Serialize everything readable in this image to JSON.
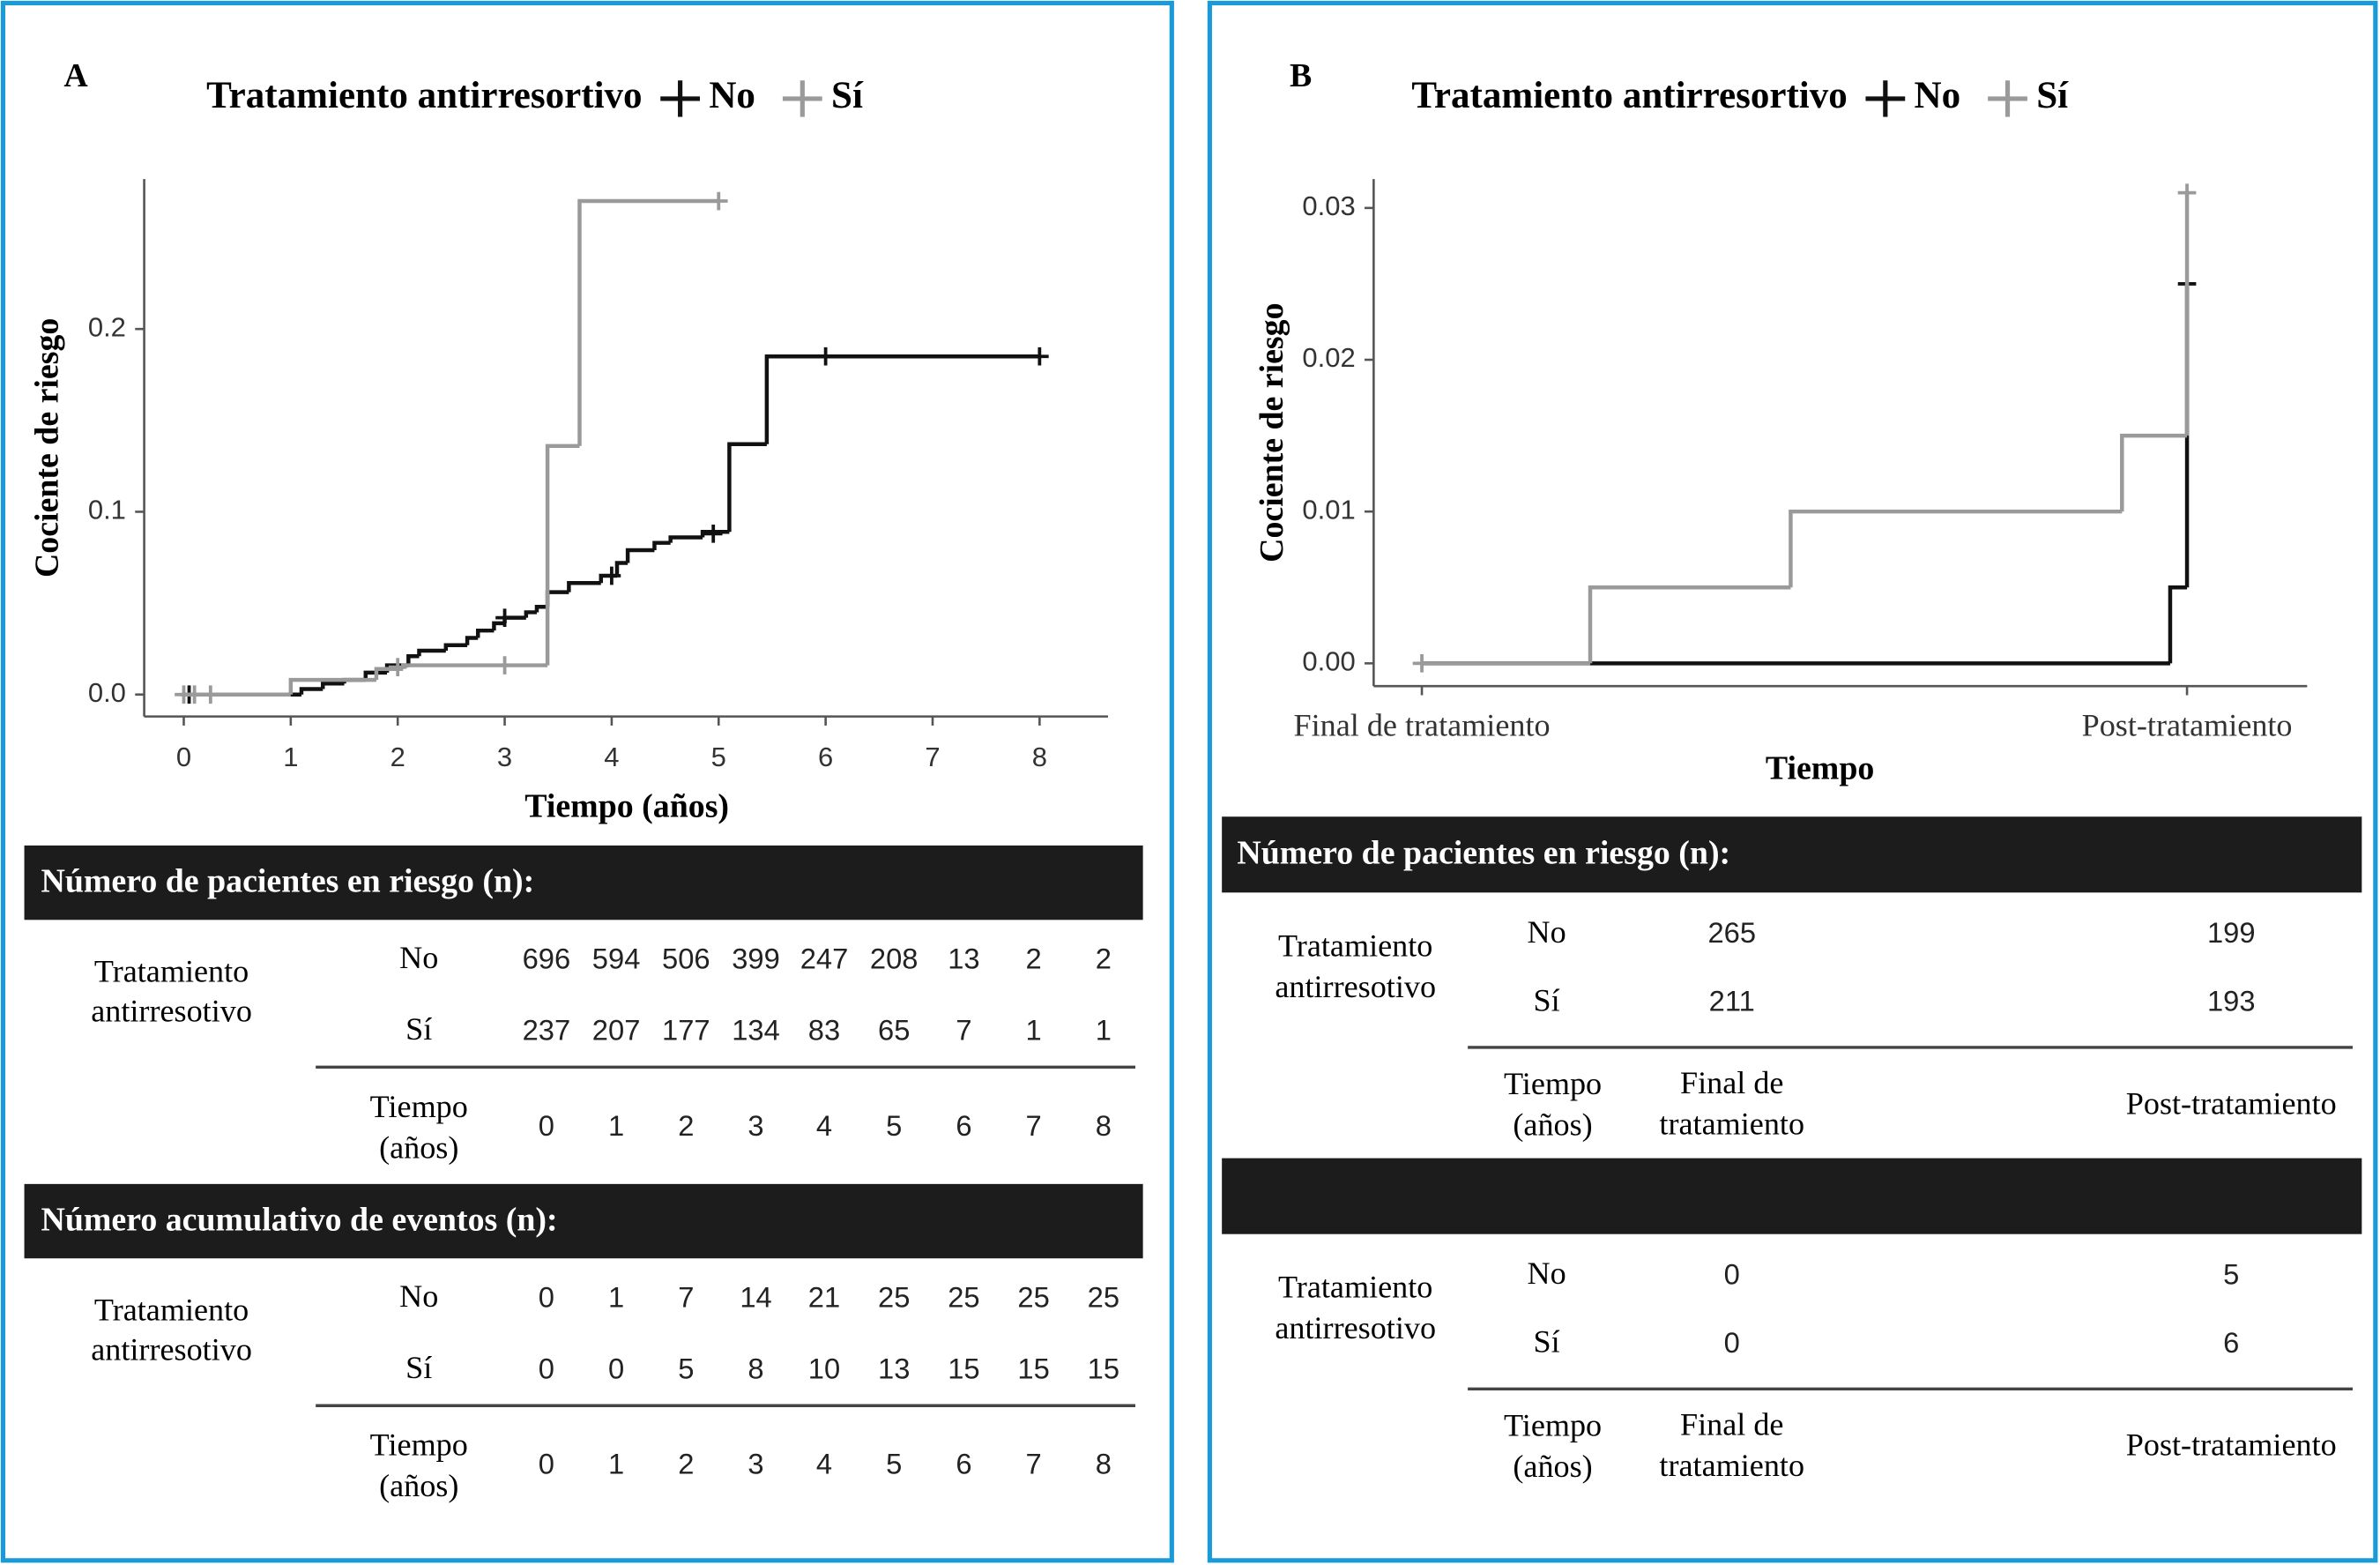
{
  "chart_data": [
    {
      "type": "step",
      "panel_label": "A",
      "title": "Tratamiento antirresortivo",
      "y_label": "Cociente de riesgo",
      "x_label": "Tiempo (años)",
      "xlim": [
        -0.37,
        8.64
      ],
      "ylim": [
        -0.012,
        0.282
      ],
      "xticks": [
        0,
        1,
        2,
        3,
        4,
        5,
        6,
        7,
        8
      ],
      "yticks": [
        {
          "value": 0,
          "label": "0.0"
        },
        0.1,
        0.2
      ],
      "series": [
        {
          "name": "No",
          "color": "#111111",
          "x": [
            0,
            1.1,
            1.3,
            1.5,
            1.7,
            1.9,
            2.1,
            2.2,
            2.45,
            2.65,
            2.75,
            2.9,
            3.0,
            3.2,
            3.3,
            3.4,
            3.6,
            3.9,
            4.05,
            4.15,
            4.4,
            4.55,
            4.85,
            5.1,
            5.45,
            8
          ],
          "values": [
            0,
            0.003,
            0.006,
            0.008,
            0.012,
            0.016,
            0.021,
            0.024,
            0.027,
            0.031,
            0.035,
            0.039,
            0.042,
            0.045,
            0.048,
            0.056,
            0.061,
            0.065,
            0.072,
            0.079,
            0.083,
            0.086,
            0.089,
            0.137,
            0.185,
            0.185
          ],
          "censored_x": [
            0.05,
            3.0,
            4.0,
            4.95,
            6,
            8
          ],
          "censored_values": [
            0,
            0.042,
            0.065,
            0.088,
            0.185,
            0.185
          ]
        },
        {
          "name": "Sí",
          "color": "#9a9a9a",
          "x": [
            0,
            1,
            1.8,
            2.05,
            3.4,
            3.7,
            5
          ],
          "values": [
            0,
            0.008,
            0.014,
            0.016,
            0.136,
            0.27,
            0.27
          ],
          "censored_x": [
            0,
            0.1,
            0.25,
            2,
            3,
            5
          ],
          "censored_values": [
            0,
            0,
            0,
            0.015,
            0.016,
            0.27
          ]
        }
      ],
      "tables": [
        {
          "title": "Número de pacientes en riesgo (n):",
          "group_label": [
            "Tratamiento",
            "antirresotivo"
          ],
          "rows": [
            {
              "name": "No",
              "values": [
                696,
                594,
                506,
                399,
                247,
                208,
                13,
                2,
                2
              ]
            },
            {
              "name": "Sí",
              "values": [
                237,
                207,
                177,
                134,
                83,
                65,
                7,
                1,
                1
              ]
            }
          ],
          "time_label": [
            "Tiempo",
            "(años)"
          ],
          "times": [
            0,
            1,
            2,
            3,
            4,
            5,
            6,
            7,
            8
          ]
        },
        {
          "title": "Número acumulativo de eventos (n):",
          "group_label": [
            "Tratamiento",
            "antirresotivo"
          ],
          "rows": [
            {
              "name": "No",
              "values": [
                0,
                1,
                7,
                14,
                21,
                25,
                25,
                25,
                25
              ]
            },
            {
              "name": "Sí",
              "values": [
                0,
                0,
                5,
                8,
                10,
                13,
                15,
                15,
                15
              ]
            }
          ],
          "time_label": [
            "Tiempo",
            "(años)"
          ],
          "times": [
            0,
            1,
            2,
            3,
            4,
            5,
            6,
            7,
            8
          ]
        }
      ]
    },
    {
      "type": "step",
      "panel_label": "B",
      "title": "Tratamiento antirresortivo",
      "y_label": "Cociente de riesgo",
      "x_label": "Tiempo",
      "xlim": [
        -0.063,
        1.157
      ],
      "ylim": [
        -0.0015,
        0.0319
      ],
      "xticks": [
        {
          "value": 0,
          "label": "Final de tratamiento"
        },
        {
          "value": 1,
          "label": "Post-tratamiento"
        }
      ],
      "yticks": [
        {
          "value": 0,
          "label": "0.00"
        },
        0.01,
        0.02,
        0.03
      ],
      "series": [
        {
          "name": "No",
          "color": "#111111",
          "x": [
            0,
            0.978,
            1
          ],
          "values": [
            0,
            0.005,
            0.025
          ],
          "censored_x": [
            1
          ],
          "censored_values": [
            0.025
          ]
        },
        {
          "name": "Sí",
          "color": "#9a9a9a",
          "x": [
            0,
            0.22,
            0.482,
            0.915,
            1
          ],
          "values": [
            0,
            0.005,
            0.01,
            0.015,
            0.031
          ],
          "censored_x": [
            0,
            1
          ],
          "censored_values": [
            0,
            0.031
          ]
        }
      ],
      "tables": [
        {
          "title": "Número de pacientes en riesgo (n):",
          "group_label": [
            "Tratamiento",
            "antirresotivo"
          ],
          "rows": [
            {
              "name": "No",
              "values": [
                265,
                199
              ]
            },
            {
              "name": "Sí",
              "values": [
                211,
                193
              ]
            }
          ],
          "time_label": [
            "Tiempo",
            "(años)"
          ],
          "times": [
            [
              "Final de",
              "tratamiento"
            ],
            [
              "Post-tratamiento"
            ]
          ]
        },
        {
          "group_label": [
            "Tratamiento",
            "antirresotivo"
          ],
          "rows": [
            {
              "name": "No",
              "values": [
                0,
                5
              ]
            },
            {
              "name": "Sí",
              "values": [
                0,
                6
              ]
            }
          ],
          "time_label": [
            "Tiempo",
            "(años)"
          ],
          "times": [
            [
              "Final de",
              "tratamiento"
            ],
            [
              "Post-tratamiento"
            ]
          ]
        }
      ]
    }
  ]
}
